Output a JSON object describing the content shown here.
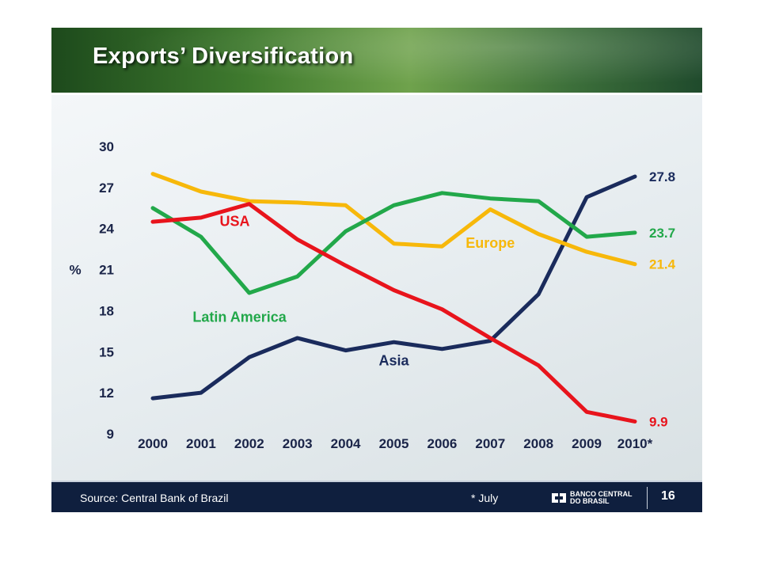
{
  "slide": {
    "title": "Exports’ Diversification",
    "source": "Source: Central Bank of Brazil",
    "footnote": "* July",
    "logo_line1": "BANCO CENTRAL",
    "logo_line2": "DO BRASIL",
    "page_number": "16"
  },
  "chart_data": {
    "type": "line",
    "title": "Exports’ Diversification",
    "ylabel": "%",
    "xlabel": "",
    "ylim": [
      9,
      30
    ],
    "yticks": [
      30,
      27,
      24,
      21,
      18,
      15,
      12,
      9
    ],
    "categories": [
      "2000",
      "2001",
      "2002",
      "2003",
      "2004",
      "2005",
      "2006",
      "2007",
      "2008",
      "2009",
      "2010*"
    ],
    "grid": false,
    "legend": "inline labels",
    "series": [
      {
        "name": "USA",
        "color": "#e8141c",
        "values": [
          24.5,
          24.8,
          25.8,
          23.2,
          21.3,
          19.5,
          18.1,
          16.0,
          14.0,
          10.6,
          9.9
        ],
        "end_label": "9.9"
      },
      {
        "name": "Latin America",
        "color": "#22a84a",
        "values": [
          25.5,
          23.4,
          19.3,
          20.5,
          23.8,
          25.7,
          26.6,
          26.2,
          26.0,
          23.4,
          23.7
        ],
        "end_label": "23.7"
      },
      {
        "name": "Europe",
        "color": "#f7b80a",
        "values": [
          28.0,
          26.7,
          26.0,
          25.9,
          25.7,
          22.9,
          22.7,
          25.4,
          23.6,
          22.3,
          21.4
        ],
        "end_label": "21.4"
      },
      {
        "name": "Asia",
        "color": "#1a2b5c",
        "values": [
          11.6,
          12.0,
          14.6,
          16.0,
          15.1,
          15.7,
          15.2,
          15.8,
          19.2,
          26.3,
          27.8
        ],
        "end_label": "27.8"
      }
    ]
  }
}
